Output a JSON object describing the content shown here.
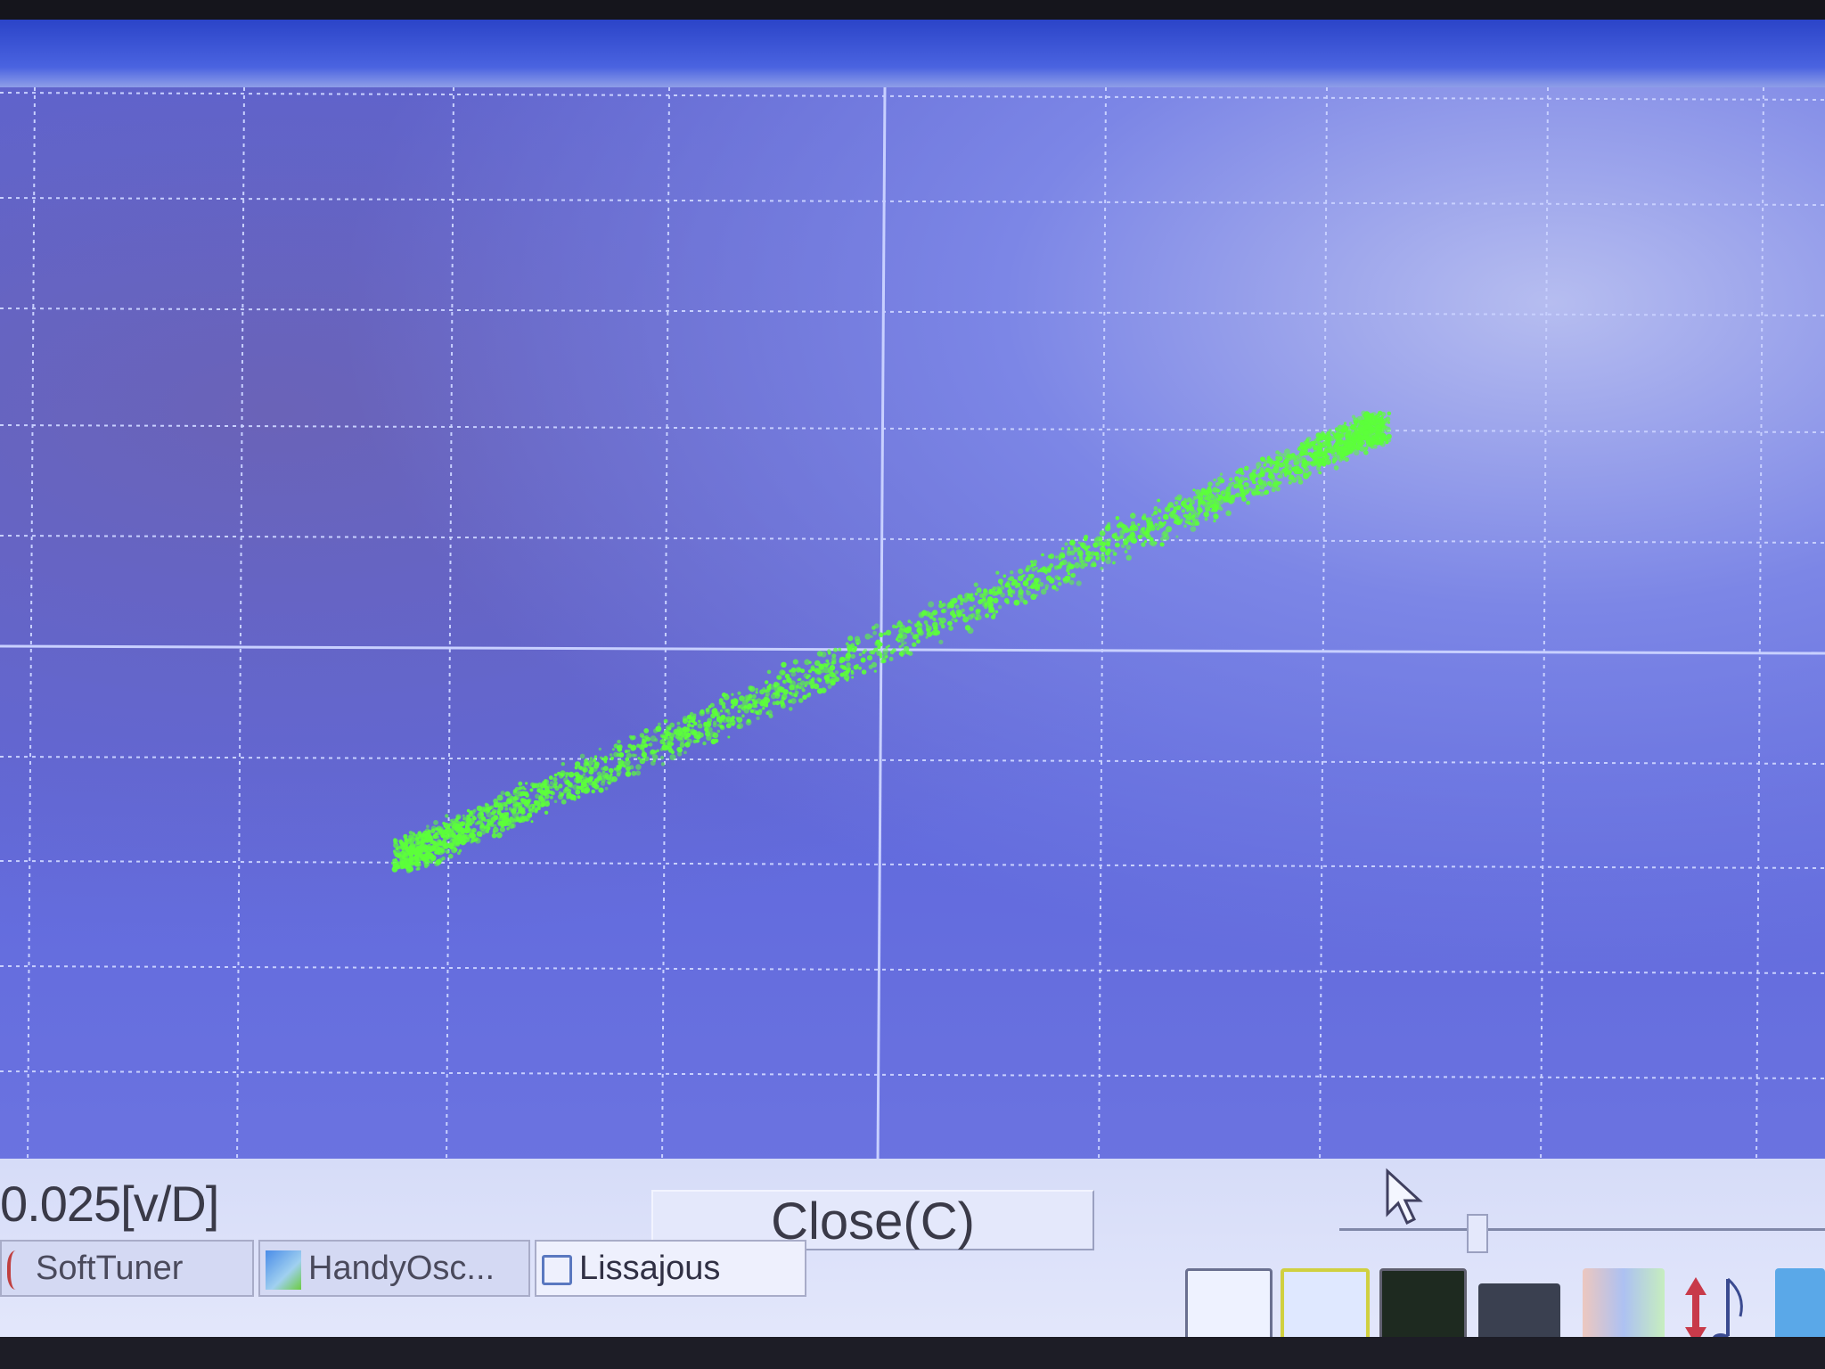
{
  "window": {
    "title_bar_color": "#3b55d8"
  },
  "scope": {
    "background_color": "#5f68dc",
    "grid_color": "#c8d0ff",
    "trace_color": "#5cff3a",
    "mode": "Lissajous XY"
  },
  "controls": {
    "scale_readout": "0.025[v/D]",
    "close_button": "Close(C)",
    "slider_position_percent": 28
  },
  "taskbar": {
    "tasks": [
      {
        "label": "SoftTuner",
        "icon": "tuner-icon",
        "active": false
      },
      {
        "label": "HandyOsc...",
        "icon": "oscilloscope-app-icon",
        "active": false
      },
      {
        "label": "Lissajous",
        "icon": "window-icon",
        "active": true
      }
    ],
    "tray_icons": [
      {
        "name": "wave-generator-icon"
      },
      {
        "name": "sine-wave-icon"
      },
      {
        "name": "oscilloscope-icon"
      },
      {
        "name": "tape-recorder-icon"
      },
      {
        "name": "spectrum-icon"
      },
      {
        "name": "volume-music-icon"
      },
      {
        "name": "back-arrow-icon"
      }
    ]
  }
}
